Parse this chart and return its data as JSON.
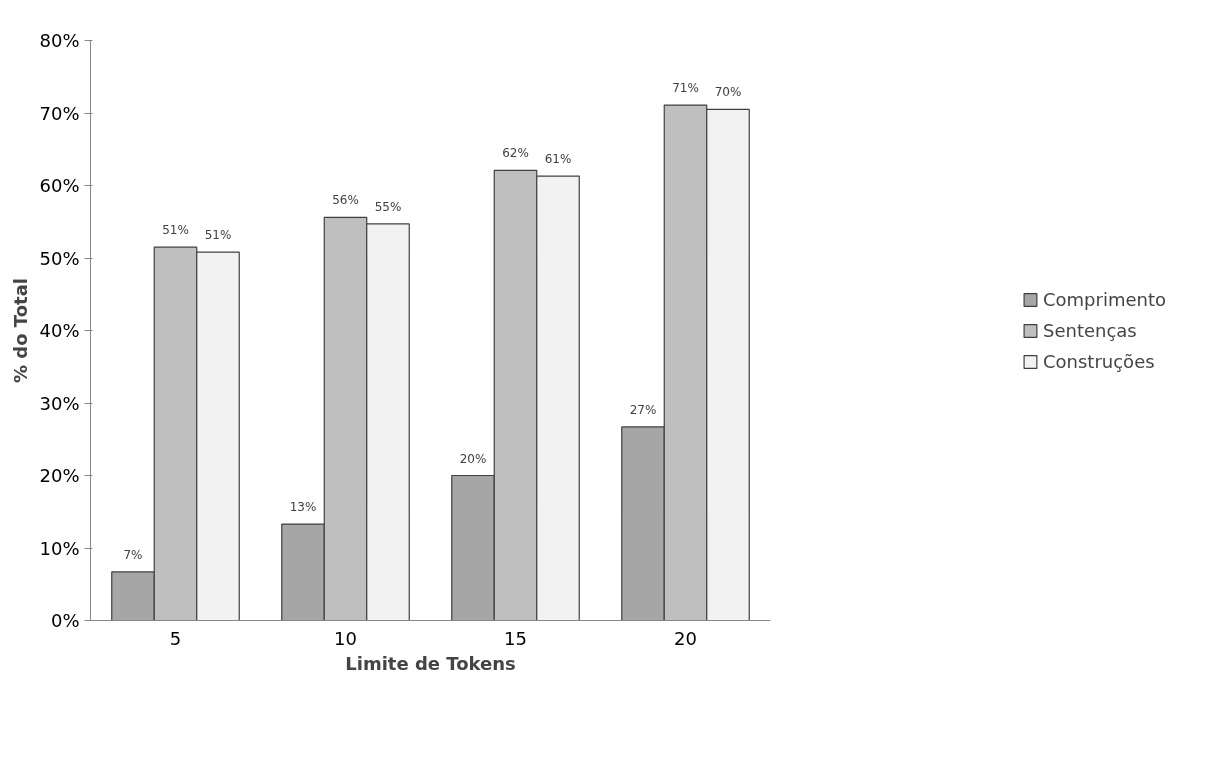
{
  "chart_data": {
    "type": "bar",
    "xlabel": "Limite de Tokens",
    "ylabel": "% do Total",
    "categories": [
      "5",
      "10",
      "15",
      "20"
    ],
    "series": [
      {
        "name": "Comprimento",
        "color": "#a6a6a6",
        "values": [
          6.7,
          13.3,
          20.0,
          26.7
        ],
        "value_labels": [
          "7%",
          "13%",
          "20%",
          "27%"
        ]
      },
      {
        "name": "Sentenças",
        "color": "#bfbfbf",
        "values": [
          51.5,
          55.6,
          62.1,
          71.1
        ],
        "value_labels": [
          "51%",
          "56%",
          "62%",
          "71%"
        ]
      },
      {
        "name": "Construções",
        "color": "#f2f2f2",
        "values": [
          50.8,
          54.7,
          61.3,
          70.5
        ],
        "value_labels": [
          "51%",
          "55%",
          "61%",
          "70%"
        ]
      }
    ],
    "ylim": [
      0,
      80
    ],
    "yticks": [
      {
        "value": 0,
        "label": "0%"
      },
      {
        "value": 10,
        "label": "10%"
      },
      {
        "value": 20,
        "label": "20%"
      },
      {
        "value": 30,
        "label": "30%"
      },
      {
        "value": 40,
        "label": "40%"
      },
      {
        "value": 50,
        "label": "50%"
      },
      {
        "value": 60,
        "label": "60%"
      },
      {
        "value": 70,
        "label": "70%"
      },
      {
        "value": 80,
        "label": "80%"
      }
    ],
    "grid": false,
    "legend": "right"
  }
}
